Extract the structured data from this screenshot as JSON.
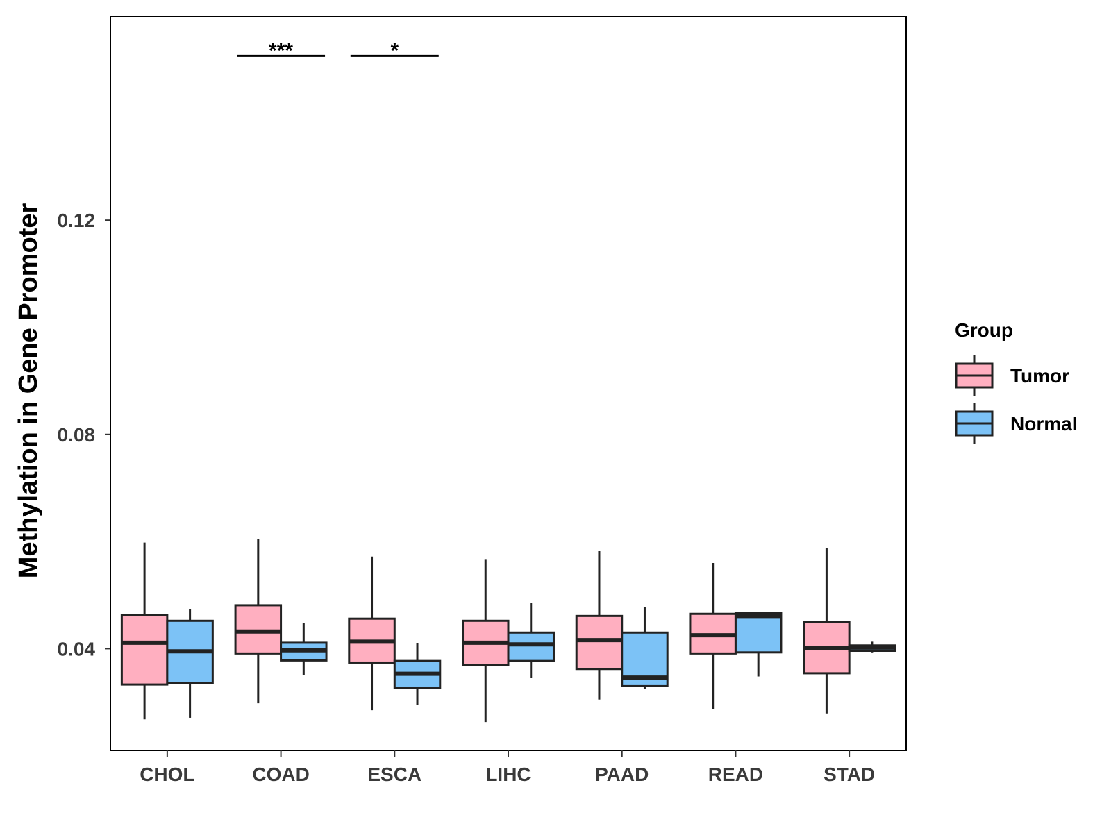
{
  "chart_data": {
    "type": "boxplot",
    "title": "",
    "xlabel": "",
    "ylabel": "Methylation in Gene Promoter",
    "ylim": [
      0.021,
      0.158
    ],
    "yticks": [
      0.04,
      0.08,
      0.12
    ],
    "ytick_labels": [
      "0.04",
      "0.08",
      "0.12"
    ],
    "grid": false,
    "categories": [
      "CHOL",
      "COAD",
      "ESCA",
      "LIHC",
      "PAAD",
      "READ",
      "STAD"
    ],
    "legend": {
      "title": "Group",
      "position": "right",
      "entries": [
        {
          "name": "Tumor",
          "color": "#FFAFC0"
        },
        {
          "name": "Normal",
          "color": "#7CC2F6"
        }
      ]
    },
    "series": [
      {
        "name": "Tumor",
        "color": "#FFAFC0",
        "boxes": [
          {
            "category": "CHOL",
            "min": 0.0268,
            "q1": 0.0333,
            "median": 0.0411,
            "q3": 0.0463,
            "max": 0.0598
          },
          {
            "category": "COAD",
            "min": 0.0298,
            "q1": 0.0391,
            "median": 0.0432,
            "q3": 0.0481,
            "max": 0.0604
          },
          {
            "category": "ESCA",
            "min": 0.0285,
            "q1": 0.0374,
            "median": 0.0413,
            "q3": 0.0456,
            "max": 0.0572
          },
          {
            "category": "LIHC",
            "min": 0.0263,
            "q1": 0.0369,
            "median": 0.0411,
            "q3": 0.0452,
            "max": 0.0566
          },
          {
            "category": "PAAD",
            "min": 0.0305,
            "q1": 0.0362,
            "median": 0.0416,
            "q3": 0.0461,
            "max": 0.0582
          },
          {
            "category": "READ",
            "min": 0.0287,
            "q1": 0.0391,
            "median": 0.0425,
            "q3": 0.0465,
            "max": 0.056
          },
          {
            "category": "STAD",
            "min": 0.0279,
            "q1": 0.0354,
            "median": 0.0401,
            "q3": 0.045,
            "max": 0.0588
          }
        ]
      },
      {
        "name": "Normal",
        "color": "#7CC2F6",
        "boxes": [
          {
            "category": "CHOL",
            "min": 0.0271,
            "q1": 0.0336,
            "median": 0.0395,
            "q3": 0.0452,
            "max": 0.0474
          },
          {
            "category": "COAD",
            "min": 0.035,
            "q1": 0.0378,
            "median": 0.0397,
            "q3": 0.0411,
            "max": 0.0448
          },
          {
            "category": "ESCA",
            "min": 0.0295,
            "q1": 0.0326,
            "median": 0.0353,
            "q3": 0.0377,
            "max": 0.041
          },
          {
            "category": "LIHC",
            "min": 0.0345,
            "q1": 0.0377,
            "median": 0.0408,
            "q3": 0.043,
            "max": 0.0485
          },
          {
            "category": "PAAD",
            "min": 0.0325,
            "q1": 0.033,
            "median": 0.0346,
            "q3": 0.043,
            "max": 0.0477
          },
          {
            "category": "READ",
            "min": 0.0348,
            "q1": 0.0393,
            "median": 0.0461,
            "q3": 0.0467,
            "max": 0.0467
          },
          {
            "category": "STAD",
            "min": 0.0393,
            "q1": 0.0396,
            "median": 0.0402,
            "q3": 0.0406,
            "max": 0.0413
          }
        ]
      }
    ],
    "annotations": [
      {
        "category": "COAD",
        "label": "***",
        "y": 0.1507
      },
      {
        "category": "ESCA",
        "label": "*",
        "y": 0.1507
      }
    ]
  }
}
